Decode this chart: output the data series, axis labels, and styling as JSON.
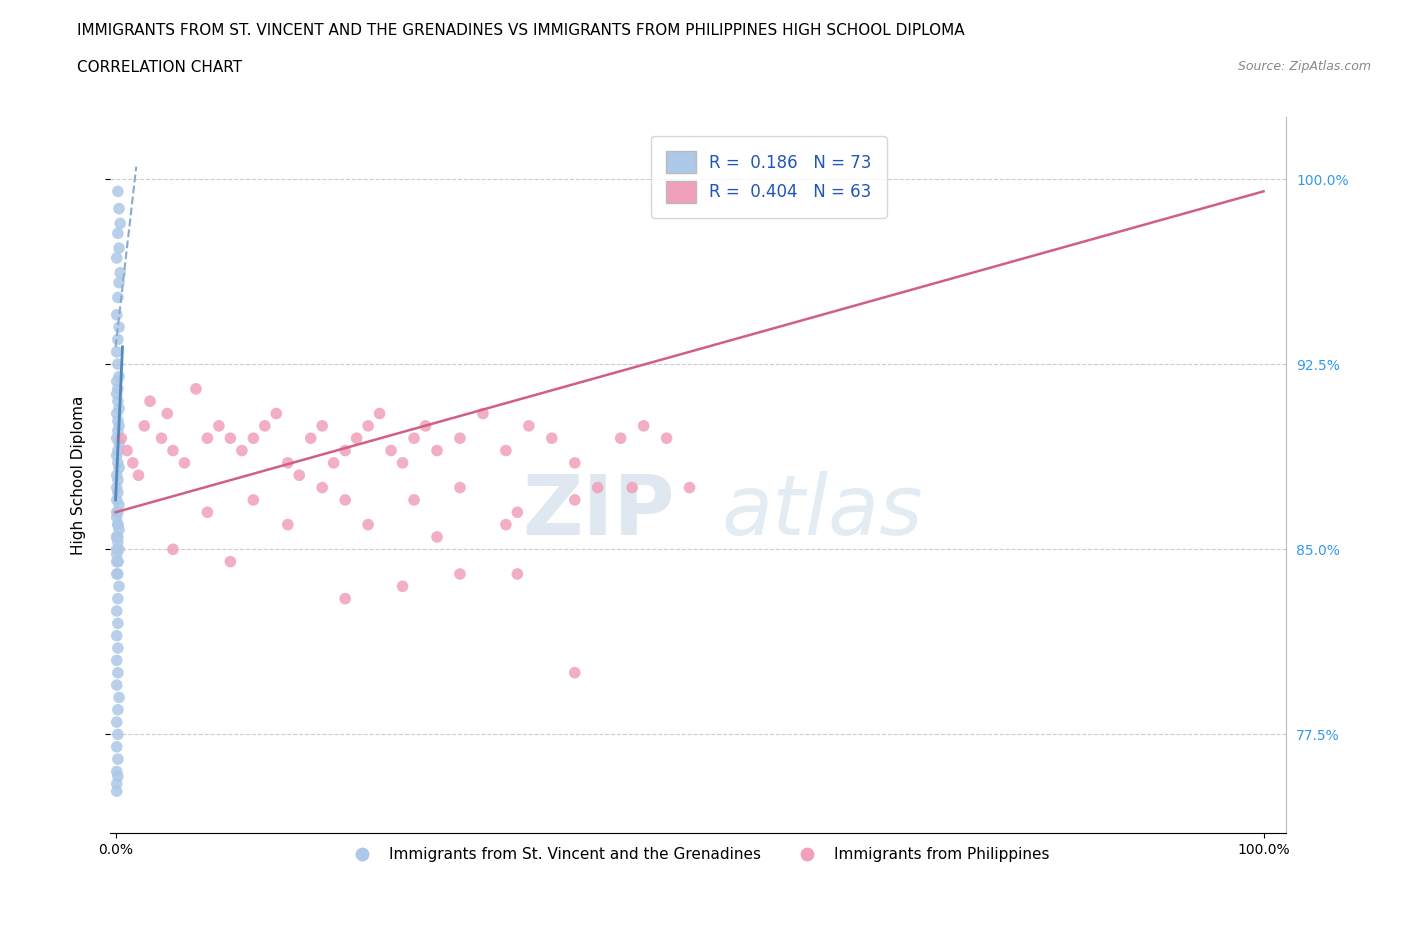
{
  "title": "IMMIGRANTS FROM ST. VINCENT AND THE GRENADINES VS IMMIGRANTS FROM PHILIPPINES HIGH SCHOOL DIPLOMA",
  "subtitle": "CORRELATION CHART",
  "source": "Source: ZipAtlas.com",
  "ylabel": "High School Diploma",
  "xlim": [
    -0.005,
    1.02
  ],
  "ylim": [
    0.735,
    1.025
  ],
  "yticks": [
    0.775,
    0.85,
    0.925,
    1.0
  ],
  "ytick_labels": [
    "77.5%",
    "85.0%",
    "92.5%",
    "100.0%"
  ],
  "xtick_labels": [
    "0.0%",
    "100.0%"
  ],
  "xticks": [
    0.0,
    1.0
  ],
  "blue_R": 0.186,
  "blue_N": 73,
  "pink_R": 0.404,
  "pink_N": 63,
  "blue_color": "#adc8e8",
  "pink_color": "#f0a0b8",
  "blue_line_color": "#5588bb",
  "blue_line_dashed_color": "#88aacc",
  "pink_line_color": "#d06080",
  "legend_label_blue": "Immigrants from St. Vincent and the Grenadines",
  "legend_label_pink": "Immigrants from Philippines",
  "watermark_zip": "ZIP",
  "watermark_atlas": "atlas",
  "watermark_color": "#d0dde8",
  "blue_scatter_x": [
    0.002,
    0.003,
    0.004,
    0.002,
    0.003,
    0.001,
    0.004,
    0.003,
    0.002,
    0.001,
    0.003,
    0.002,
    0.001,
    0.002,
    0.003,
    0.001,
    0.002,
    0.001,
    0.002,
    0.003,
    0.001,
    0.002,
    0.003,
    0.002,
    0.001,
    0.003,
    0.002,
    0.001,
    0.002,
    0.003,
    0.001,
    0.002,
    0.001,
    0.002,
    0.001,
    0.003,
    0.002,
    0.001,
    0.002,
    0.003,
    0.001,
    0.002,
    0.003,
    0.001,
    0.002,
    0.001,
    0.003,
    0.002,
    0.001,
    0.002,
    0.001,
    0.002,
    0.001,
    0.002,
    0.001,
    0.003,
    0.002,
    0.001,
    0.002,
    0.001,
    0.002,
    0.001,
    0.002,
    0.001,
    0.001,
    0.001,
    0.002,
    0.001,
    0.002,
    0.001,
    0.002,
    0.001,
    0.002
  ],
  "blue_scatter_y": [
    0.995,
    0.988,
    0.982,
    0.978,
    0.972,
    0.968,
    0.962,
    0.958,
    0.952,
    0.945,
    0.94,
    0.935,
    0.93,
    0.925,
    0.92,
    0.918,
    0.915,
    0.913,
    0.91,
    0.907,
    0.905,
    0.902,
    0.9,
    0.898,
    0.895,
    0.893,
    0.89,
    0.888,
    0.885,
    0.883,
    0.88,
    0.878,
    0.875,
    0.873,
    0.87,
    0.868,
    0.865,
    0.863,
    0.86,
    0.858,
    0.855,
    0.853,
    0.85,
    0.848,
    0.845,
    0.84,
    0.835,
    0.83,
    0.825,
    0.82,
    0.815,
    0.81,
    0.805,
    0.8,
    0.795,
    0.79,
    0.785,
    0.78,
    0.775,
    0.77,
    0.765,
    0.76,
    0.758,
    0.755,
    0.752,
    0.85,
    0.845,
    0.855,
    0.86,
    0.865,
    0.855,
    0.845,
    0.84
  ],
  "pink_scatter_x": [
    0.005,
    0.01,
    0.015,
    0.02,
    0.025,
    0.03,
    0.04,
    0.045,
    0.05,
    0.06,
    0.07,
    0.08,
    0.09,
    0.1,
    0.11,
    0.12,
    0.13,
    0.14,
    0.15,
    0.16,
    0.17,
    0.18,
    0.19,
    0.2,
    0.21,
    0.22,
    0.23,
    0.24,
    0.25,
    0.26,
    0.27,
    0.28,
    0.3,
    0.32,
    0.34,
    0.36,
    0.38,
    0.4,
    0.42,
    0.44,
    0.46,
    0.48,
    0.5,
    0.34,
    0.28,
    0.2,
    0.15,
    0.1,
    0.05,
    0.08,
    0.12,
    0.18,
    0.22,
    0.26,
    0.3,
    0.35,
    0.4,
    0.45,
    0.3,
    0.25,
    0.35,
    0.2,
    0.4
  ],
  "pink_scatter_y": [
    0.895,
    0.89,
    0.885,
    0.88,
    0.9,
    0.91,
    0.895,
    0.905,
    0.89,
    0.885,
    0.915,
    0.895,
    0.9,
    0.895,
    0.89,
    0.895,
    0.9,
    0.905,
    0.885,
    0.88,
    0.895,
    0.9,
    0.885,
    0.89,
    0.895,
    0.9,
    0.905,
    0.89,
    0.885,
    0.895,
    0.9,
    0.89,
    0.895,
    0.905,
    0.89,
    0.9,
    0.895,
    0.885,
    0.875,
    0.895,
    0.9,
    0.895,
    0.875,
    0.86,
    0.855,
    0.87,
    0.86,
    0.845,
    0.85,
    0.865,
    0.87,
    0.875,
    0.86,
    0.87,
    0.875,
    0.865,
    0.87,
    0.875,
    0.84,
    0.835,
    0.84,
    0.83,
    0.8
  ],
  "pink_line_x0": 0.0,
  "pink_line_y0": 0.865,
  "pink_line_x1": 1.0,
  "pink_line_y1": 0.995,
  "blue_line_solid_x0": 0.0,
  "blue_line_solid_y0": 0.87,
  "blue_line_solid_x1": 0.006,
  "blue_line_solid_y1": 0.932,
  "blue_line_dash_x0": 0.0,
  "blue_line_dash_y0": 0.932,
  "blue_line_dash_x1": 0.018,
  "blue_line_dash_y1": 1.005,
  "background_color": "#ffffff",
  "title_fontsize": 11,
  "subtitle_fontsize": 11,
  "axis_label_fontsize": 10,
  "tick_fontsize": 10,
  "legend_fontsize": 11
}
